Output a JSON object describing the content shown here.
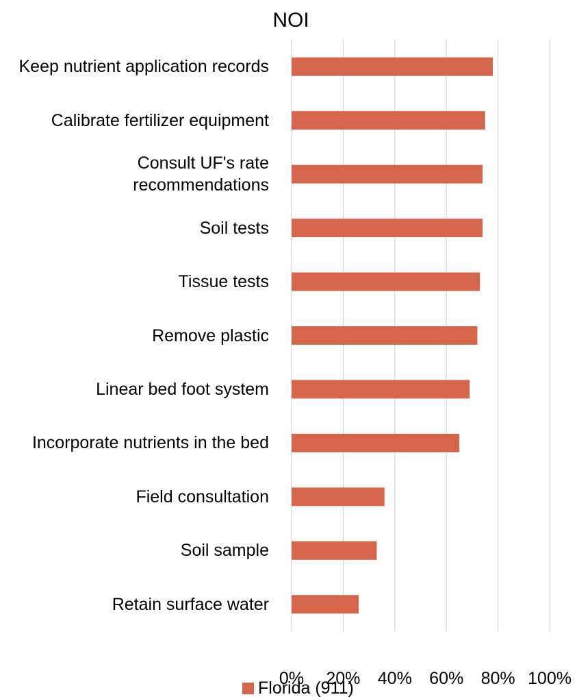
{
  "chart_data": {
    "type": "barh",
    "title": "NOI",
    "categories": [
      "Keep nutrient application records",
      "Calibrate fertilizer equipment",
      "Consult UF's rate recommendations",
      "Soil tests",
      "Tissue tests",
      "Remove plastic",
      "Linear bed foot system",
      "Incorporate nutrients in the bed",
      "Field consultation",
      "Soil sample",
      "Retain surface water"
    ],
    "series": [
      {
        "name": "Florida (911)",
        "color": "#d5654b",
        "values": [
          78,
          75,
          74,
          74,
          73,
          72,
          69,
          65,
          36,
          33,
          26
        ]
      }
    ],
    "xlim": [
      0,
      100
    ],
    "xticks": [
      {
        "value": 0,
        "label": "0%"
      },
      {
        "value": 20,
        "label": "20%"
      },
      {
        "value": 40,
        "label": "40%"
      },
      {
        "value": 60,
        "label": "60%"
      },
      {
        "value": 80,
        "label": "80%"
      },
      {
        "value": 100,
        "label": "100%"
      }
    ],
    "grid": true
  }
}
